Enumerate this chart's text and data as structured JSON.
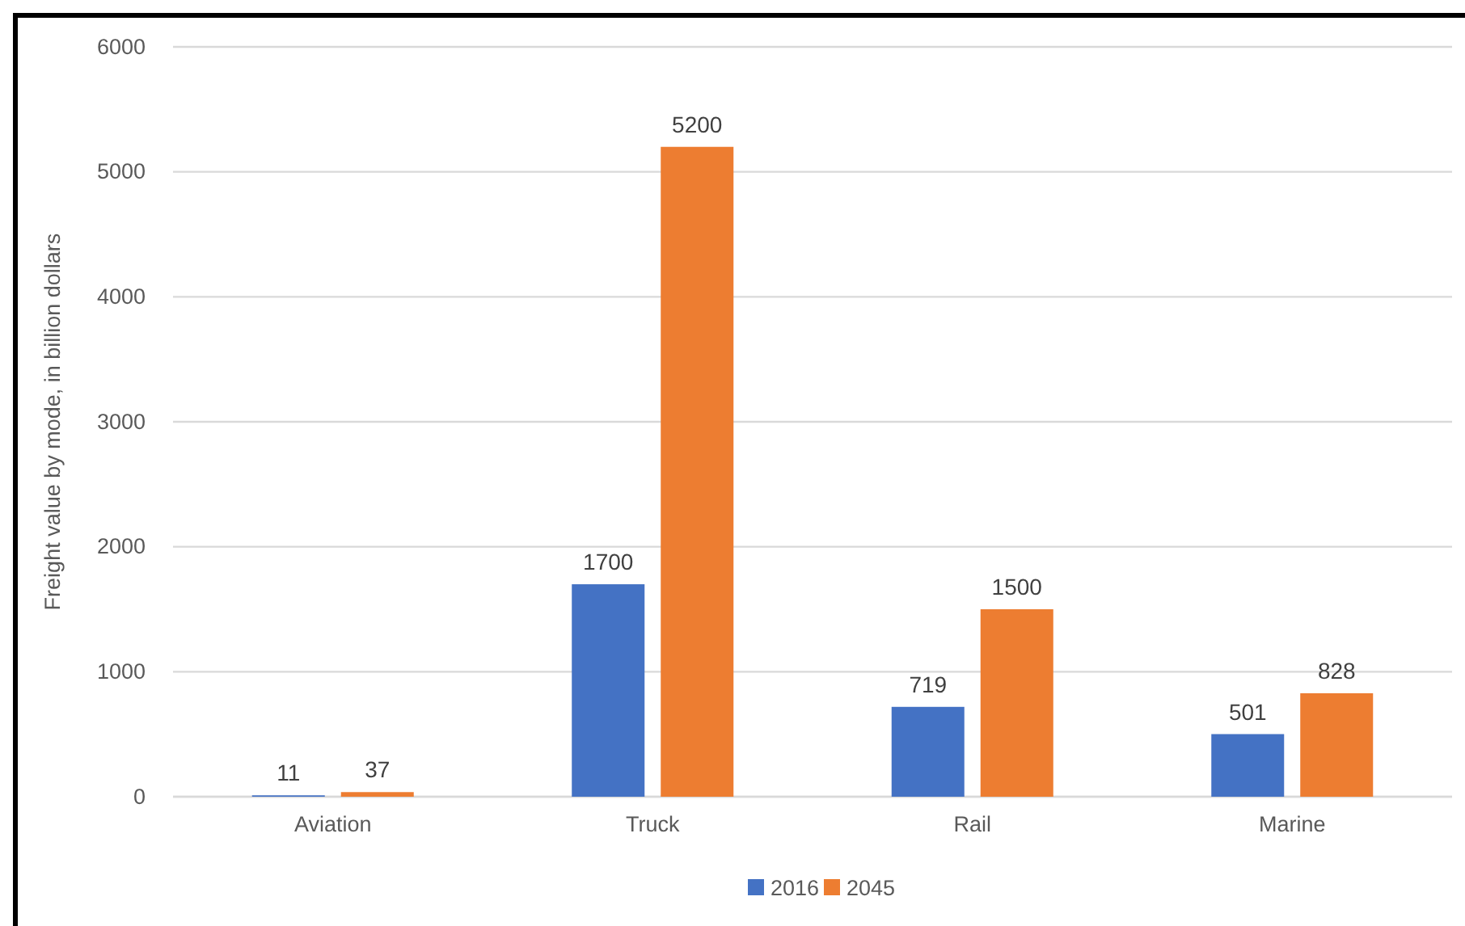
{
  "chart_data": {
    "type": "bar",
    "ylabel": "Freight value by mode, in billion dollars",
    "categories": [
      "Aviation",
      "Truck",
      "Rail",
      "Marine"
    ],
    "series": [
      {
        "name": "2016",
        "color": "#4472c4",
        "values": [
          11,
          1700,
          719,
          501
        ]
      },
      {
        "name": "2045",
        "color": "#ed7d31",
        "values": [
          37,
          5200,
          1500,
          828
        ]
      }
    ],
    "ylim": [
      0,
      6000
    ],
    "yticks": [
      0,
      1000,
      2000,
      3000,
      4000,
      5000,
      6000
    ],
    "grid": "y",
    "legend": "bottom",
    "data_labels": true
  }
}
